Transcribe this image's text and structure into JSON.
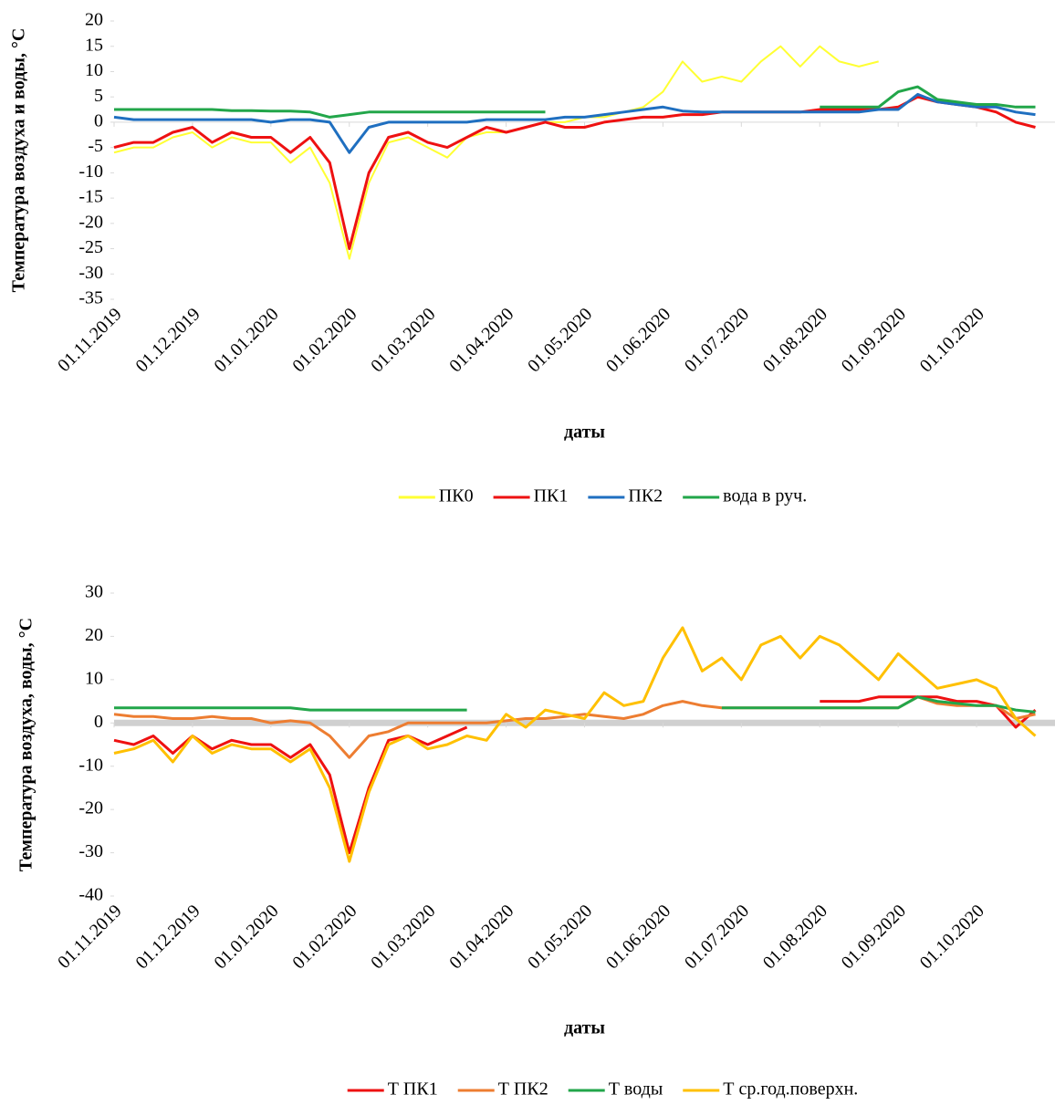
{
  "chart_data": [
    {
      "type": "line",
      "y_label": "Температура воздуха и воды, °C",
      "x_label": "даты",
      "categories": [
        "01.11.2019",
        null,
        null,
        null,
        "01.12.2019",
        null,
        null,
        null,
        "01.01.2020",
        null,
        null,
        null,
        "01.02.2020",
        null,
        null,
        null,
        "01.03.2020",
        null,
        null,
        null,
        "01.04.2020",
        null,
        null,
        null,
        "01.05.2020",
        null,
        null,
        null,
        "01.06.2020",
        null,
        null,
        null,
        "01.07.2020",
        null,
        null,
        null,
        "01.08.2020",
        null,
        null,
        null,
        "01.09.2020",
        null,
        null,
        null,
        "01.10.2020",
        null,
        null,
        null
      ],
      "ylim": [
        -35,
        20
      ],
      "yticks": [
        20,
        15,
        10,
        5,
        0,
        -5,
        -10,
        -15,
        -20,
        -25,
        -30,
        -35
      ],
      "series": [
        {
          "name": "ПК0",
          "color": "#ffff33",
          "values": [
            -6,
            -5,
            -5,
            -3,
            -2,
            -5,
            -3,
            -4,
            -4,
            -8,
            -5,
            -12,
            -27,
            -12,
            -4,
            -3,
            -5,
            -7,
            -3,
            -2,
            -2,
            -1,
            0,
            0,
            1,
            1,
            2,
            3,
            6,
            12,
            8,
            9,
            8,
            12,
            15,
            11,
            15,
            12,
            11,
            12,
            null,
            null,
            null,
            null,
            null,
            null,
            null,
            null
          ]
        },
        {
          "name": "ПК1",
          "color": "#ee1111",
          "values": [
            -5,
            -4,
            -4,
            -2,
            -1,
            -4,
            -2,
            -3,
            -3,
            -6,
            -3,
            -8,
            -25,
            -10,
            -3,
            -2,
            -4,
            -5,
            -3,
            -1,
            -2,
            -1,
            0,
            -1,
            -1,
            0,
            0.5,
            1,
            1,
            1.5,
            1.5,
            2,
            2,
            2,
            2,
            2,
            2.5,
            2.5,
            2.5,
            2.5,
            3,
            5,
            4,
            3.5,
            3,
            2,
            0,
            -1
          ]
        },
        {
          "name": "ПК2",
          "color": "#1f6fc0",
          "values": [
            1,
            0.5,
            0.5,
            0.5,
            0.5,
            0.5,
            0.5,
            0.5,
            0,
            0.5,
            0.5,
            0,
            -6,
            -1,
            0,
            0,
            0,
            0,
            0,
            0.5,
            0.5,
            0.5,
            0.5,
            1,
            1,
            1.5,
            2,
            2.5,
            3,
            2.2,
            2,
            2,
            2,
            2,
            2,
            2,
            2,
            2,
            2,
            2.5,
            2.5,
            5.5,
            4,
            3.5,
            3,
            3,
            2,
            1.5
          ]
        },
        {
          "name": "вода в руч.",
          "color": "#22a64a",
          "values": [
            2.5,
            2.5,
            2.5,
            2.5,
            2.5,
            2.5,
            2.3,
            2.3,
            2.2,
            2.2,
            2,
            1,
            1.5,
            2,
            2,
            2,
            2,
            2,
            2,
            2,
            2,
            2,
            2,
            null,
            null,
            null,
            null,
            null,
            null,
            null,
            null,
            null,
            null,
            null,
            null,
            null,
            3,
            3,
            3,
            3,
            6,
            7,
            4.5,
            4,
            3.5,
            3.5,
            3,
            3
          ]
        }
      ]
    },
    {
      "type": "line",
      "y_label": "Температура воздуха, воды, °C",
      "x_label": "даты",
      "categories": [
        "01.11.2019",
        null,
        null,
        null,
        "01.12.2019",
        null,
        null,
        null,
        "01.01.2020",
        null,
        null,
        null,
        "01.02.2020",
        null,
        null,
        null,
        "01.03.2020",
        null,
        null,
        null,
        "01.04.2020",
        null,
        null,
        null,
        "01.05.2020",
        null,
        null,
        null,
        "01.06.2020",
        null,
        null,
        null,
        "01.07.2020",
        null,
        null,
        null,
        "01.08.2020",
        null,
        null,
        null,
        "01.09.2020",
        null,
        null,
        null,
        "01.10.2020",
        null,
        null,
        null
      ],
      "ylim": [
        -40,
        30
      ],
      "yticks": [
        30,
        20,
        10,
        0,
        -10,
        -20,
        -30,
        -40
      ],
      "series": [
        {
          "name": "Т ПК1",
          "color": "#ee1111",
          "values": [
            -4,
            -5,
            -3,
            -7,
            -3,
            -6,
            -4,
            -5,
            -5,
            -8,
            -5,
            -12,
            -30,
            -15,
            -4,
            -3,
            -5,
            -3,
            -1,
            null,
            null,
            null,
            null,
            null,
            null,
            null,
            null,
            null,
            null,
            null,
            null,
            null,
            null,
            null,
            null,
            null,
            5,
            5,
            5,
            6,
            6,
            6,
            6,
            5,
            5,
            4,
            -1,
            3
          ]
        },
        {
          "name": "Т ПК2",
          "color": "#ed7d31",
          "values": [
            2,
            1.5,
            1.5,
            1,
            1,
            1.5,
            1,
            1,
            0,
            0.5,
            0,
            -3,
            -8,
            -3,
            -2,
            0,
            0,
            0,
            0,
            0,
            0.5,
            1,
            1,
            1.5,
            2,
            1.5,
            1,
            2,
            4,
            5,
            4,
            3.5,
            3.5,
            3.5,
            3.5,
            3.5,
            3.5,
            3.5,
            3.5,
            3.5,
            3.5,
            6,
            4.5,
            4,
            4,
            4,
            1,
            2
          ]
        },
        {
          "name": "Т воды",
          "color": "#22a64a",
          "values": [
            3.5,
            3.5,
            3.5,
            3.5,
            3.5,
            3.5,
            3.5,
            3.5,
            3.5,
            3.5,
            3,
            3,
            3,
            3,
            3,
            3,
            3,
            3,
            3,
            null,
            null,
            null,
            null,
            null,
            null,
            null,
            null,
            null,
            null,
            null,
            null,
            3.5,
            3.5,
            3.5,
            3.5,
            3.5,
            3.5,
            3.5,
            3.5,
            3.5,
            3.5,
            6,
            5,
            4.5,
            4,
            4,
            3,
            2.5
          ]
        },
        {
          "name": "Т ср.год.поверхн.",
          "color": "#ffc000",
          "values": [
            -7,
            -6,
            -4,
            -9,
            -3,
            -7,
            -5,
            -6,
            -6,
            -9,
            -6,
            -15,
            -32,
            -16,
            -5,
            -3,
            -6,
            -5,
            -3,
            -4,
            2,
            -1,
            3,
            2,
            1,
            7,
            4,
            5,
            15,
            22,
            12,
            15,
            10,
            18,
            20,
            15,
            20,
            18,
            14,
            10,
            16,
            12,
            8,
            9,
            10,
            8,
            1,
            -3
          ]
        }
      ]
    }
  ]
}
